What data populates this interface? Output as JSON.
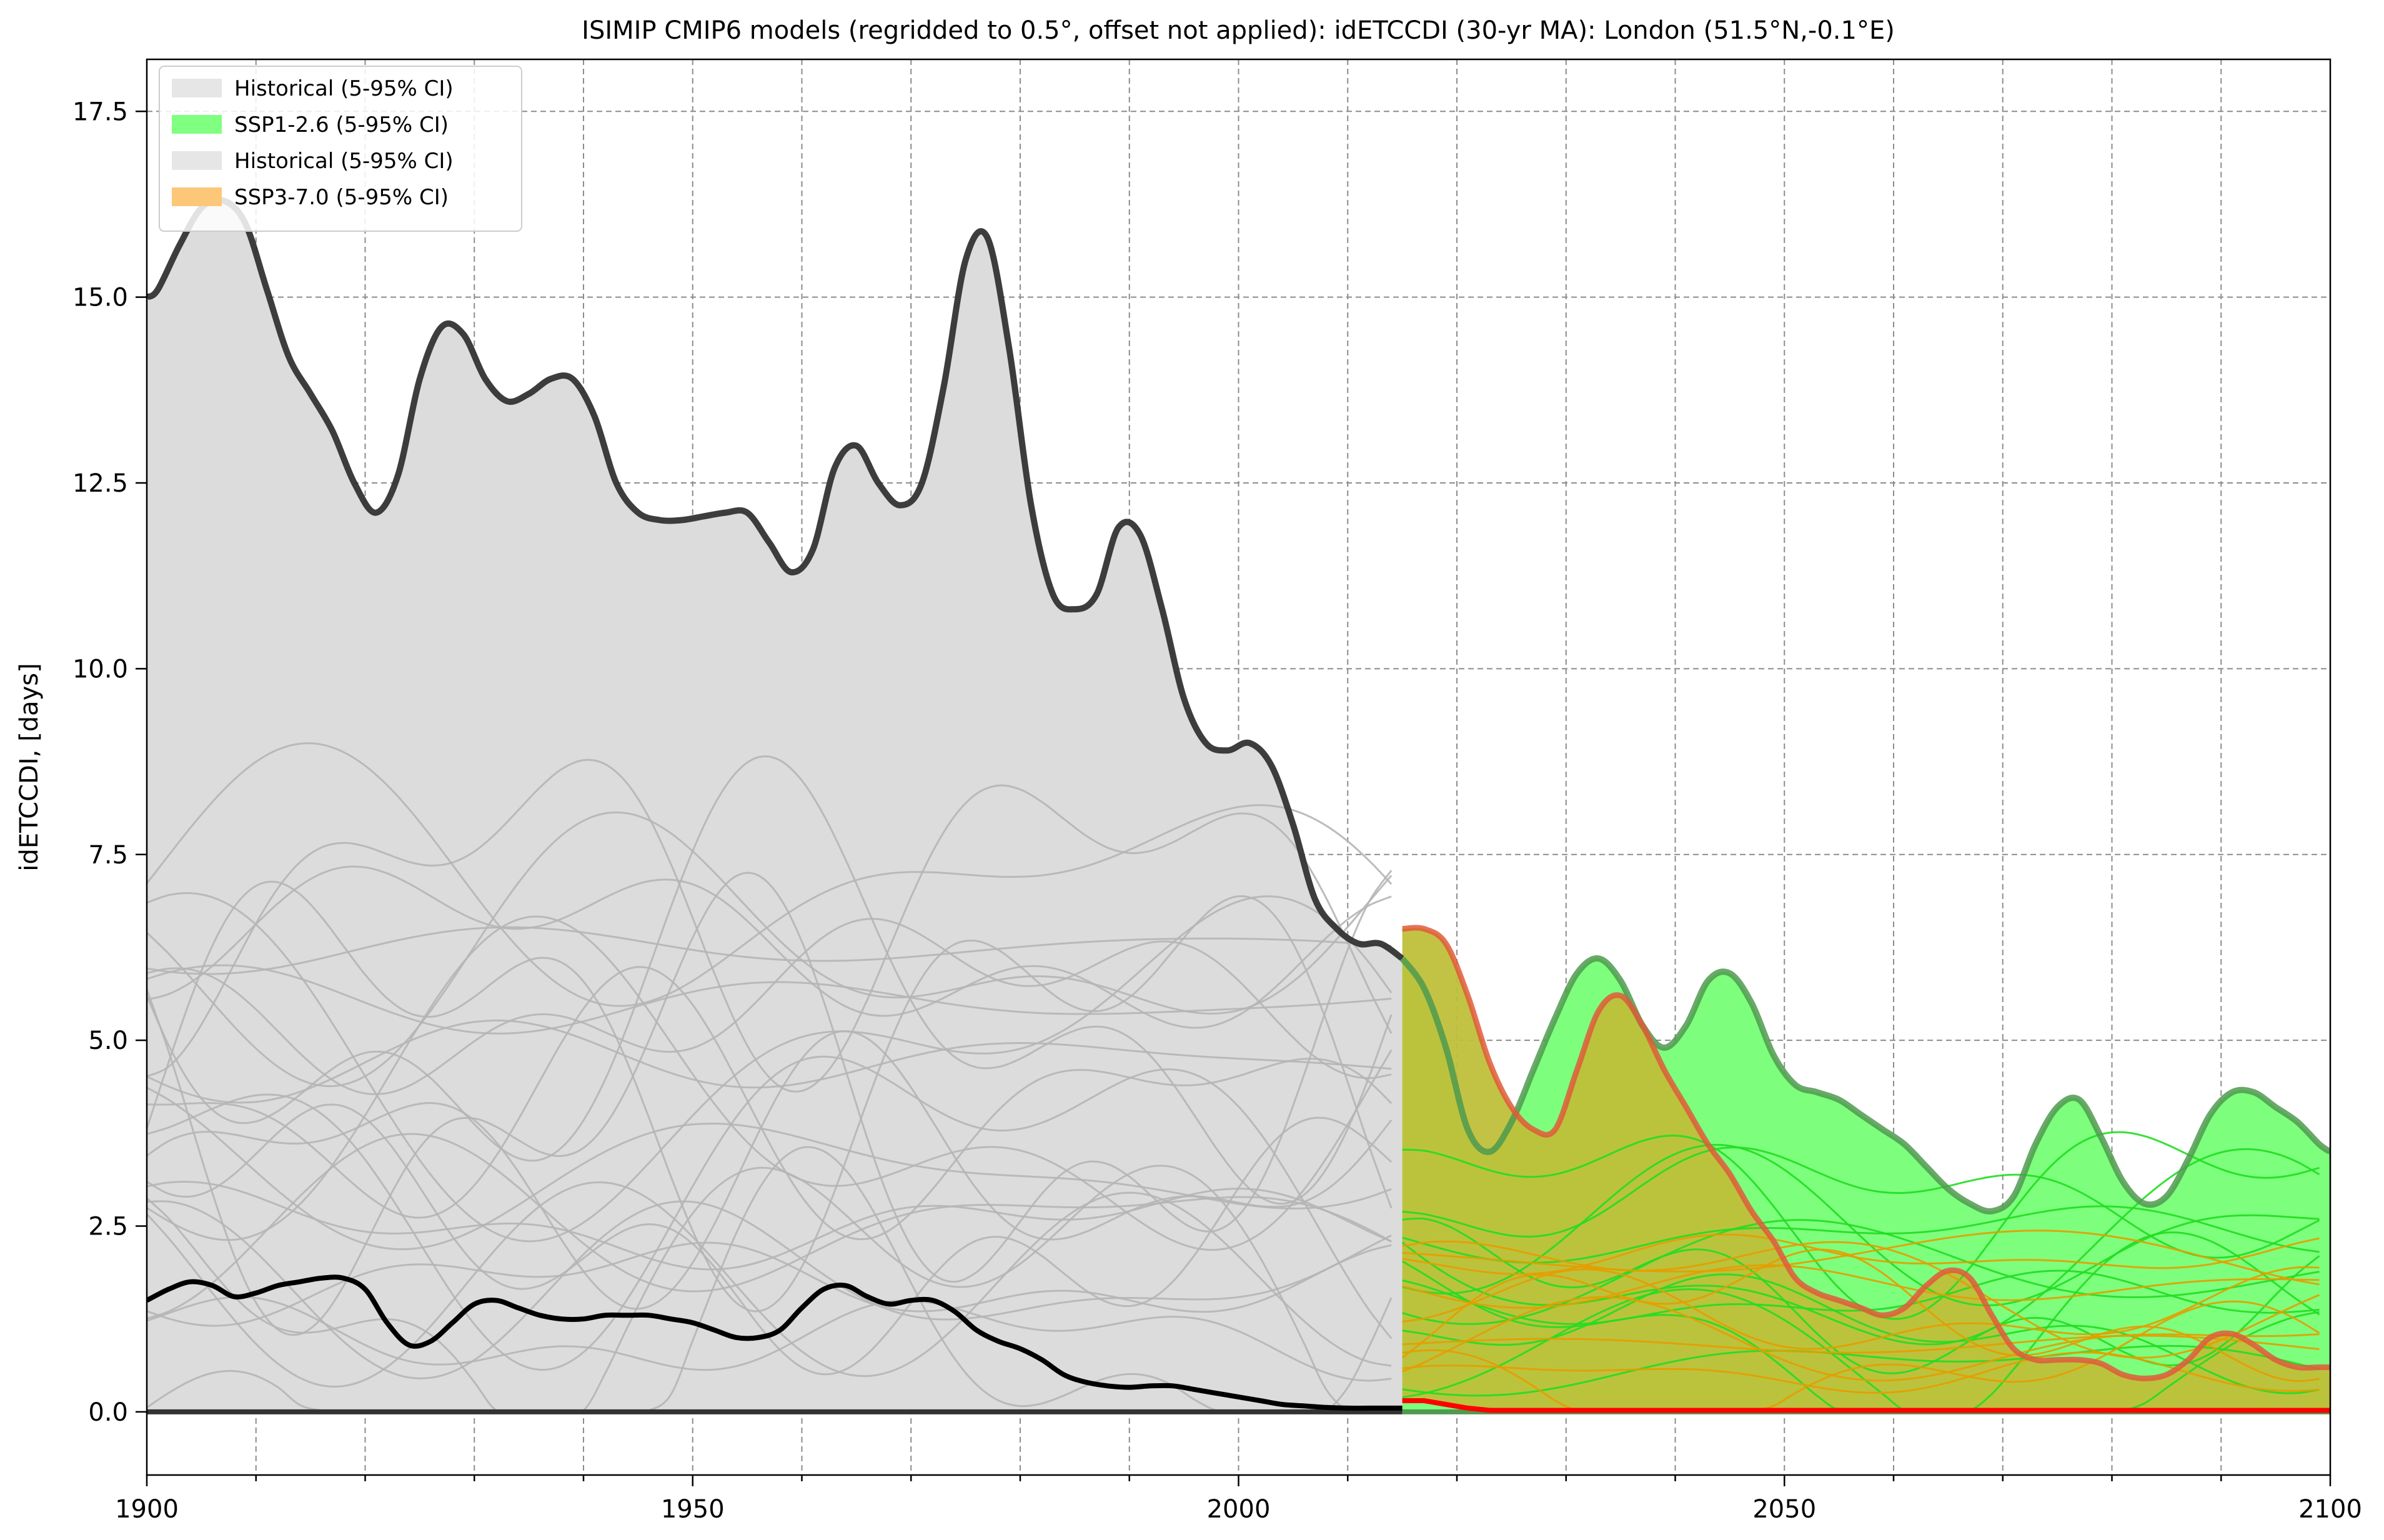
{
  "chart_data": {
    "type": "area",
    "title": "ISIMIP CMIP6 models (regridded to 0.5°, offset not applied): idETCCDI (30-yr MA): London (51.5°N,-0.1°E)",
    "xlabel": "",
    "ylabel": "idETCCDI, [days]",
    "xlim": [
      1900,
      2100
    ],
    "ylim": [
      -0.85,
      18.2
    ],
    "x_ticks": [
      1900,
      1950,
      2000,
      2050,
      2100
    ],
    "x_minor_ticks": [
      1910,
      1920,
      1930,
      1940,
      1960,
      1970,
      1980,
      1990,
      2010,
      2020,
      2030,
      2040,
      2060,
      2070,
      2080,
      2090
    ],
    "y_ticks": [
      0.0,
      2.5,
      5.0,
      7.5,
      10.0,
      12.5,
      15.0,
      17.5
    ],
    "y_tick_labels": [
      "0.0",
      "2.5",
      "5.0",
      "7.5",
      "10.0",
      "12.5",
      "15.0",
      "17.5"
    ],
    "grid": true,
    "legend_position": "top-left",
    "legend": [
      {
        "label": "Historical (5-95% CI)",
        "color": "#e6e6e6"
      },
      {
        "label": "SSP1-2.6 (5-95% CI)",
        "color": "#80ff80"
      },
      {
        "label": "Historical (5-95% CI)",
        "color": "#e6e6e6"
      },
      {
        "label": "SSP3-7.0 (5-95% CI)",
        "color": "#fdc77a"
      }
    ],
    "colors": {
      "historical_fill": "#dcdcdc",
      "historical_edge": "#333333",
      "ssp126_fill": "#7dff7d",
      "ssp126_edge": "#4f9a4f",
      "ssp370_fill": "#bfc03a",
      "ssp370_edge": "#e05a3a",
      "ssp126_lines": "#22dd22",
      "ssp370_lines": "#e69d00",
      "hist_model_lines": "#b5b5b5"
    },
    "series": [
      {
        "name": "Historical (5-95% CI)",
        "type": "band",
        "x": [
          1900,
          1901,
          1903,
          1905,
          1907,
          1909,
          1911,
          1913,
          1915,
          1917,
          1919,
          1921,
          1923,
          1925,
          1927,
          1929,
          1931,
          1933,
          1935,
          1937,
          1939,
          1941,
          1943,
          1945,
          1947,
          1949,
          1951,
          1953,
          1955,
          1957,
          1959,
          1961,
          1963,
          1965,
          1967,
          1969,
          1971,
          1973,
          1975,
          1977,
          1979,
          1981,
          1983,
          1985,
          1987,
          1989,
          1991,
          1993,
          1995,
          1997,
          1999,
          2001,
          2003,
          2005,
          2007,
          2009,
          2011,
          2013,
          2015
        ],
        "upper": [
          15.0,
          15.1,
          15.7,
          16.2,
          16.3,
          16.0,
          15.1,
          14.2,
          13.7,
          13.2,
          12.5,
          12.1,
          12.6,
          13.9,
          14.6,
          14.5,
          13.9,
          13.6,
          13.7,
          13.9,
          13.9,
          13.4,
          12.5,
          12.1,
          12.0,
          12.0,
          12.05,
          12.1,
          12.1,
          11.7,
          11.3,
          11.6,
          12.7,
          13.0,
          12.5,
          12.2,
          12.5,
          13.8,
          15.5,
          15.8,
          14.3,
          12.2,
          11.0,
          10.8,
          11.0,
          11.9,
          11.8,
          10.8,
          9.6,
          9.0,
          8.9,
          9.0,
          8.7,
          7.9,
          6.9,
          6.5,
          6.3,
          6.3,
          6.1
        ],
        "lower": [
          0.0,
          0.0,
          0.0,
          0.0,
          0.0,
          0.0,
          0.0,
          0.0,
          0.0,
          0.0,
          0.0,
          0.0,
          0.0,
          0.0,
          0.0,
          0.0,
          0.0,
          0.0,
          0.0,
          0.0,
          0.0,
          0.0,
          0.0,
          0.0,
          0.0,
          0.0,
          0.0,
          0.0,
          0.0,
          0.0,
          0.0,
          0.0,
          0.0,
          0.0,
          0.0,
          0.0,
          0.0,
          0.0,
          0.0,
          0.0,
          0.0,
          0.0,
          0.0,
          0.0,
          0.0,
          0.0,
          0.0,
          0.0,
          0.0,
          0.0,
          0.0,
          0.0,
          0.0,
          0.0,
          0.0,
          0.0,
          0.0,
          0.0,
          0.0
        ]
      },
      {
        "name": "SSP1-2.6 (5-95% CI)",
        "type": "band",
        "x": [
          2015,
          2017,
          2019,
          2021,
          2023,
          2025,
          2027,
          2029,
          2031,
          2033,
          2035,
          2037,
          2039,
          2041,
          2043,
          2045,
          2047,
          2049,
          2051,
          2053,
          2055,
          2057,
          2059,
          2061,
          2063,
          2065,
          2067,
          2069,
          2071,
          2073,
          2075,
          2077,
          2079,
          2081,
          2083,
          2085,
          2087,
          2089,
          2091,
          2093,
          2095,
          2097,
          2099,
          2100
        ],
        "upper": [
          6.1,
          5.7,
          4.9,
          3.8,
          3.5,
          3.9,
          4.6,
          5.3,
          5.9,
          6.1,
          5.8,
          5.2,
          4.9,
          5.2,
          5.8,
          5.9,
          5.5,
          4.8,
          4.4,
          4.3,
          4.2,
          4.0,
          3.8,
          3.6,
          3.3,
          3.0,
          2.8,
          2.7,
          2.9,
          3.6,
          4.1,
          4.2,
          3.7,
          3.1,
          2.8,
          2.9,
          3.4,
          4.0,
          4.3,
          4.3,
          4.1,
          3.9,
          3.6,
          3.5
        ],
        "lower": [
          0.0,
          0.0,
          0.0,
          0.0,
          0.0,
          0.0,
          0.0,
          0.0,
          0.0,
          0.0,
          0.0,
          0.0,
          0.0,
          0.0,
          0.0,
          0.0,
          0.0,
          0.0,
          0.0,
          0.0,
          0.0,
          0.0,
          0.0,
          0.0,
          0.0,
          0.0,
          0.0,
          0.0,
          0.0,
          0.0,
          0.0,
          0.0,
          0.0,
          0.0,
          0.0,
          0.0,
          0.0,
          0.0,
          0.0,
          0.0,
          0.0,
          0.0,
          0.0,
          0.0
        ]
      },
      {
        "name": "SSP3-7.0 (5-95% CI)",
        "type": "band",
        "x": [
          2015,
          2017,
          2019,
          2021,
          2023,
          2025,
          2027,
          2029,
          2031,
          2033,
          2035,
          2037,
          2039,
          2041,
          2043,
          2045,
          2047,
          2049,
          2051,
          2053,
          2055,
          2057,
          2059,
          2061,
          2063,
          2065,
          2067,
          2069,
          2071,
          2073,
          2075,
          2077,
          2079,
          2081,
          2083,
          2085,
          2087,
          2089,
          2091,
          2093,
          2095,
          2097,
          2099,
          2100
        ],
        "upper": [
          6.5,
          6.5,
          6.3,
          5.6,
          4.7,
          4.1,
          3.8,
          3.8,
          4.6,
          5.4,
          5.6,
          5.2,
          4.6,
          4.1,
          3.6,
          3.2,
          2.7,
          2.3,
          1.8,
          1.6,
          1.5,
          1.4,
          1.3,
          1.4,
          1.7,
          1.9,
          1.8,
          1.3,
          0.85,
          0.7,
          0.7,
          0.7,
          0.65,
          0.5,
          0.45,
          0.5,
          0.7,
          1.0,
          1.05,
          0.9,
          0.7,
          0.6,
          0.6,
          0.6
        ],
        "lower": [
          0.15,
          0.15,
          0.1,
          0.05,
          0.02,
          0.02,
          0.02,
          0.02,
          0.02,
          0.02,
          0.02,
          0.02,
          0.02,
          0.02,
          0.02,
          0.02,
          0.02,
          0.02,
          0.02,
          0.02,
          0.02,
          0.02,
          0.02,
          0.02,
          0.02,
          0.02,
          0.02,
          0.02,
          0.02,
          0.02,
          0.02,
          0.02,
          0.02,
          0.02,
          0.02,
          0.02,
          0.02,
          0.02,
          0.02,
          0.02,
          0.02,
          0.02,
          0.02,
          0.02
        ]
      },
      {
        "name": "",
        "type": "line",
        "color": "#000000",
        "x": [
          1900,
          1902,
          1904,
          1906,
          1908,
          1910,
          1912,
          1914,
          1916,
          1918,
          1920,
          1922,
          1924,
          1926,
          1928,
          1930,
          1932,
          1934,
          1936,
          1938,
          1940,
          1942,
          1944,
          1946,
          1948,
          1950,
          1952,
          1954,
          1956,
          1958,
          1960,
          1962,
          1964,
          1966,
          1968,
          1970,
          1972,
          1974,
          1976,
          1978,
          1980,
          1982,
          1984,
          1986,
          1988,
          1990,
          1992,
          1994,
          1996,
          1998,
          2000,
          2002,
          2004,
          2006,
          2008,
          2010,
          2012,
          2014,
          2015
        ],
        "values": [
          1.5,
          1.65,
          1.75,
          1.7,
          1.55,
          1.6,
          1.7,
          1.75,
          1.8,
          1.8,
          1.65,
          1.2,
          0.9,
          0.95,
          1.2,
          1.45,
          1.5,
          1.4,
          1.3,
          1.25,
          1.25,
          1.3,
          1.3,
          1.3,
          1.25,
          1.2,
          1.1,
          1.0,
          1.0,
          1.1,
          1.4,
          1.65,
          1.7,
          1.55,
          1.45,
          1.5,
          1.5,
          1.35,
          1.1,
          0.95,
          0.85,
          0.7,
          0.5,
          0.4,
          0.35,
          0.33,
          0.35,
          0.35,
          0.3,
          0.25,
          0.2,
          0.15,
          0.1,
          0.08,
          0.06,
          0.05,
          0.05,
          0.05,
          0.05
        ]
      }
    ]
  }
}
